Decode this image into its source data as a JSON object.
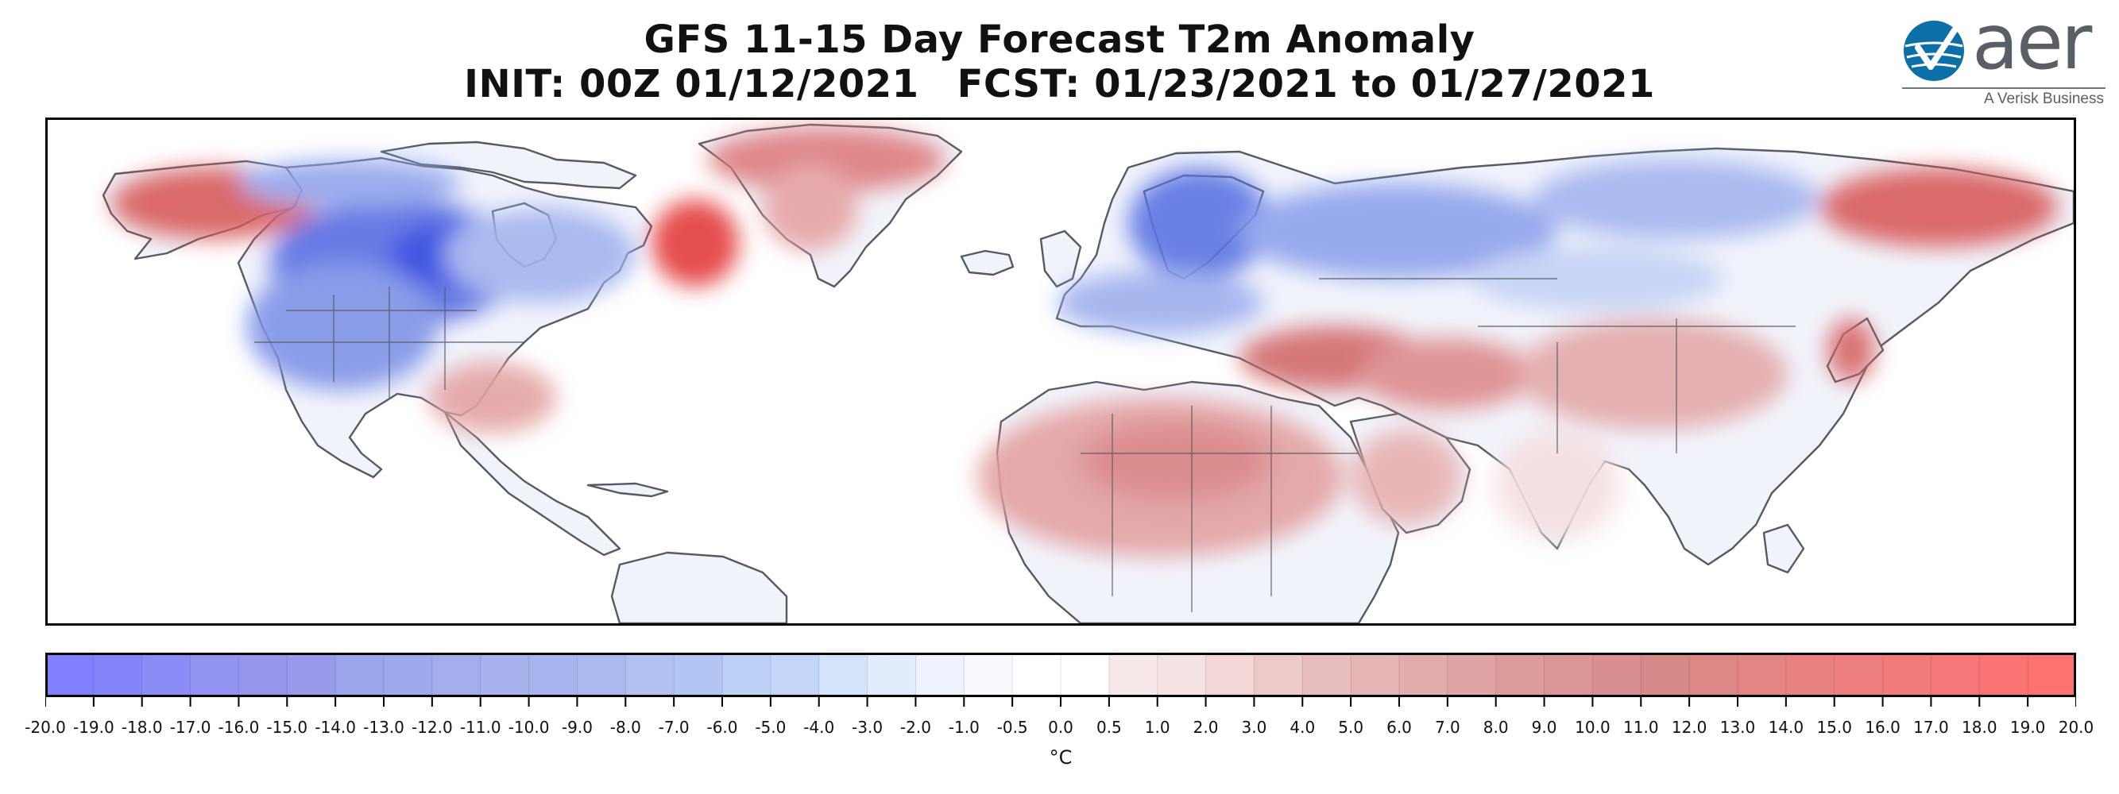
{
  "title": {
    "line1": "GFS 11-15 Day Forecast T2m Anomaly",
    "init": "INIT: 00Z 01/12/2021",
    "fcst": "FCST: 01/23/2021 to 01/27/2021"
  },
  "logo": {
    "word": "aer",
    "tagline": "A Verisk Business"
  },
  "map": {
    "projection": "equirectangular",
    "extent_lon": [
      -180,
      180
    ],
    "extent_lat": [
      0,
      90
    ],
    "anomaly_regions": [
      {
        "name": "Alaska",
        "anomaly_c": 8
      },
      {
        "name": "Greenland",
        "anomaly_c": 8
      },
      {
        "name": "Labrador / Quebec",
        "anomaly_c": 14
      },
      {
        "name": "Western Canada / Northern US Plains",
        "anomaly_c": -12
      },
      {
        "name": "Western United States",
        "anomaly_c": -6
      },
      {
        "name": "Eastern Canada",
        "anomaly_c": -4
      },
      {
        "name": "Mexico",
        "anomaly_c": 4
      },
      {
        "name": "Scandinavia",
        "anomaly_c": -8
      },
      {
        "name": "Western Europe",
        "anomaly_c": -5
      },
      {
        "name": "Western Russia",
        "anomaly_c": -6
      },
      {
        "name": "Central Siberia",
        "anomaly_c": -5
      },
      {
        "name": "Eastern Siberia",
        "anomaly_c": 8
      },
      {
        "name": "Turkey / Middle East",
        "anomaly_c": 8
      },
      {
        "name": "North Africa / Sahara",
        "anomaly_c": 6
      },
      {
        "name": "Arabian Peninsula",
        "anomaly_c": 5
      },
      {
        "name": "Central Asia / China",
        "anomaly_c": 5
      },
      {
        "name": "Japan",
        "anomaly_c": 7
      },
      {
        "name": "India",
        "anomaly_c": 1
      }
    ]
  },
  "colorbar": {
    "unit": "°C",
    "ticks": [
      "-20.0",
      "-19.0",
      "-18.0",
      "-17.0",
      "-16.0",
      "-15.0",
      "-14.0",
      "-13.0",
      "-12.0",
      "-11.0",
      "-10.0",
      "-9.0",
      "-8.0",
      "-7.0",
      "-6.0",
      "-5.0",
      "-4.0",
      "-3.0",
      "-2.0",
      "-1.0",
      "-0.5",
      "0.0",
      "0.5",
      "1.0",
      "2.0",
      "3.0",
      "4.0",
      "5.0",
      "6.0",
      "7.0",
      "8.0",
      "9.0",
      "10.0",
      "11.0",
      "12.0",
      "13.0",
      "14.0",
      "15.0",
      "16.0",
      "17.0",
      "18.0",
      "19.0",
      "20.0"
    ],
    "colors": [
      "#7f7fff",
      "#8585fb",
      "#8c8cf6",
      "#9393f2",
      "#9595ec",
      "#9a9aea",
      "#9ba5ea",
      "#9ea9eb",
      "#a3adec",
      "#a8b3ee",
      "#a6b5ee",
      "#a9b9ef",
      "#b1c1f1",
      "#b3c6f3",
      "#bdd0f5",
      "#c4d6f7",
      "#d4e2fa",
      "#e3ecfb",
      "#eff3fd",
      "#f7f9fe",
      "#ffffff",
      "#ffffff",
      "#f7e9e9",
      "#f5e3e3",
      "#f2d7d7",
      "#eccaca",
      "#e8bdbd",
      "#e5b4b4",
      "#e2acac",
      "#dfa4a4",
      "#dc9c9c",
      "#da9595",
      "#d98f8f",
      "#d78989",
      "#dd8787",
      "#e38585",
      "#e88282",
      "#ed7f7f",
      "#f17b7b",
      "#f67777",
      "#fa7474",
      "#fe7171"
    ]
  }
}
